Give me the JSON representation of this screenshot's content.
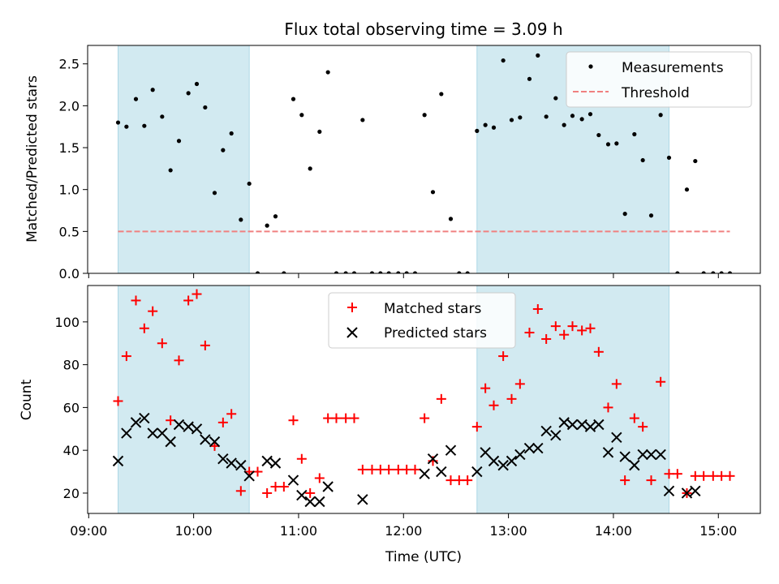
{
  "figure": {
    "title": "Flux total observing time = 3.09 h",
    "xlabel": "Time (UTC)",
    "x_ticks": [
      "09:00",
      "10:00",
      "11:00",
      "12:00",
      "13:00",
      "14:00",
      "15:00"
    ],
    "x_tick_hours": [
      9,
      10,
      11,
      12,
      13,
      14,
      15
    ],
    "xlim_hours": [
      8.99,
      15.4
    ],
    "shaded_spans_hours": [
      [
        9.28,
        10.53
      ],
      [
        12.7,
        14.53
      ]
    ],
    "shade_color": "#add8e6"
  },
  "chart_data": [
    {
      "type": "scatter",
      "ylabel": "Matched/Predicted stars",
      "ylim": [
        0,
        2.72
      ],
      "y_ticks": [
        0.0,
        0.5,
        1.0,
        1.5,
        2.0,
        2.5
      ],
      "y_tick_labels": [
        "0.0",
        "0.5",
        "1.0",
        "1.5",
        "2.0",
        "2.5"
      ],
      "legend_position": "upper-right",
      "series": [
        {
          "name": "Measurements",
          "kind": "points",
          "color": "#000000",
          "points": [
            [
              9.28,
              1.8
            ],
            [
              9.36,
              1.75
            ],
            [
              9.45,
              2.08
            ],
            [
              9.53,
              1.76
            ],
            [
              9.61,
              2.19
            ],
            [
              9.7,
              1.87
            ],
            [
              9.78,
              1.23
            ],
            [
              9.86,
              1.58
            ],
            [
              9.95,
              2.15
            ],
            [
              10.03,
              2.26
            ],
            [
              10.11,
              1.98
            ],
            [
              10.2,
              0.96
            ],
            [
              10.28,
              1.47
            ],
            [
              10.36,
              1.67
            ],
            [
              10.45,
              0.64
            ],
            [
              10.53,
              1.07
            ],
            [
              10.61,
              0.0
            ],
            [
              10.7,
              0.57
            ],
            [
              10.78,
              0.68
            ],
            [
              10.86,
              0.0
            ],
            [
              10.95,
              2.08
            ],
            [
              11.03,
              1.89
            ],
            [
              11.11,
              1.25
            ],
            [
              11.2,
              1.69
            ],
            [
              11.28,
              2.4
            ],
            [
              11.36,
              0.0
            ],
            [
              11.45,
              0.0
            ],
            [
              11.53,
              0.0
            ],
            [
              11.61,
              1.83
            ],
            [
              11.7,
              0.0
            ],
            [
              11.78,
              0.0
            ],
            [
              11.86,
              0.0
            ],
            [
              11.95,
              0.0
            ],
            [
              12.03,
              0.0
            ],
            [
              12.11,
              0.0
            ],
            [
              12.2,
              1.89
            ],
            [
              12.28,
              0.97
            ],
            [
              12.36,
              2.14
            ],
            [
              12.45,
              0.65
            ],
            [
              12.53,
              0.0
            ],
            [
              12.61,
              0.0
            ],
            [
              12.7,
              1.7
            ],
            [
              12.78,
              1.77
            ],
            [
              12.86,
              1.74
            ],
            [
              12.95,
              2.54
            ],
            [
              13.03,
              1.83
            ],
            [
              13.11,
              1.86
            ],
            [
              13.2,
              2.32
            ],
            [
              13.28,
              2.6
            ],
            [
              13.36,
              1.87
            ],
            [
              13.45,
              2.09
            ],
            [
              13.53,
              1.77
            ],
            [
              13.61,
              1.88
            ],
            [
              13.7,
              1.84
            ],
            [
              13.78,
              1.9
            ],
            [
              13.86,
              1.65
            ],
            [
              13.95,
              1.54
            ],
            [
              14.03,
              1.55
            ],
            [
              14.11,
              0.71
            ],
            [
              14.2,
              1.66
            ],
            [
              14.28,
              1.35
            ],
            [
              14.36,
              0.69
            ],
            [
              14.45,
              1.89
            ],
            [
              14.53,
              1.38
            ],
            [
              14.61,
              0.0
            ],
            [
              14.7,
              1.0
            ],
            [
              14.78,
              1.34
            ],
            [
              14.86,
              0.0
            ],
            [
              14.95,
              0.0
            ],
            [
              15.03,
              0.0
            ],
            [
              15.11,
              0.0
            ]
          ]
        },
        {
          "name": "Threshold",
          "kind": "dashed-line",
          "color": "#f08080",
          "x": [
            9.28,
            15.11
          ],
          "y": [
            0.5,
            0.5
          ]
        }
      ]
    },
    {
      "type": "scatter",
      "ylabel": "Count",
      "ylim": [
        10.5,
        117
      ],
      "y_ticks": [
        20,
        40,
        60,
        80,
        100
      ],
      "y_tick_labels": [
        "20",
        "40",
        "60",
        "80",
        "100"
      ],
      "legend_position": "upper-center",
      "series": [
        {
          "name": "Matched stars",
          "kind": "plus",
          "color": "#ff0000",
          "points": [
            [
              9.28,
              63
            ],
            [
              9.36,
              84
            ],
            [
              9.45,
              110
            ],
            [
              9.53,
              97
            ],
            [
              9.61,
              105
            ],
            [
              9.7,
              90
            ],
            [
              9.78,
              54
            ],
            [
              9.86,
              82
            ],
            [
              9.95,
              110
            ],
            [
              10.03,
              113
            ],
            [
              10.11,
              89
            ],
            [
              10.2,
              42
            ],
            [
              10.28,
              53
            ],
            [
              10.36,
              57
            ],
            [
              10.45,
              21
            ],
            [
              10.53,
              30
            ],
            [
              10.61,
              30
            ],
            [
              10.7,
              20
            ],
            [
              10.78,
              23
            ],
            [
              10.86,
              23
            ],
            [
              10.95,
              54
            ],
            [
              11.03,
              36
            ],
            [
              11.11,
              20
            ],
            [
              11.2,
              27
            ],
            [
              11.28,
              55
            ],
            [
              11.36,
              55
            ],
            [
              11.45,
              55
            ],
            [
              11.53,
              55
            ],
            [
              11.61,
              31
            ],
            [
              11.7,
              31
            ],
            [
              11.78,
              31
            ],
            [
              11.86,
              31
            ],
            [
              11.95,
              31
            ],
            [
              12.03,
              31
            ],
            [
              12.11,
              31
            ],
            [
              12.2,
              55
            ],
            [
              12.28,
              35
            ],
            [
              12.36,
              64
            ],
            [
              12.45,
              26
            ],
            [
              12.53,
              26
            ],
            [
              12.61,
              26
            ],
            [
              12.7,
              51
            ],
            [
              12.78,
              69
            ],
            [
              12.86,
              61
            ],
            [
              12.95,
              84
            ],
            [
              13.03,
              64
            ],
            [
              13.11,
              71
            ],
            [
              13.2,
              95
            ],
            [
              13.28,
              106
            ],
            [
              13.36,
              92
            ],
            [
              13.45,
              98
            ],
            [
              13.53,
              94
            ],
            [
              13.61,
              98
            ],
            [
              13.7,
              96
            ],
            [
              13.78,
              97
            ],
            [
              13.86,
              86
            ],
            [
              13.95,
              60
            ],
            [
              14.03,
              71
            ],
            [
              14.11,
              26
            ],
            [
              14.2,
              55
            ],
            [
              14.28,
              51
            ],
            [
              14.36,
              26
            ],
            [
              14.45,
              72
            ],
            [
              14.53,
              29
            ],
            [
              14.61,
              29
            ],
            [
              14.7,
              20
            ],
            [
              14.78,
              28
            ],
            [
              14.86,
              28
            ],
            [
              14.95,
              28
            ],
            [
              15.03,
              28
            ],
            [
              15.11,
              28
            ]
          ]
        },
        {
          "name": "Predicted stars",
          "kind": "x",
          "color": "#000000",
          "points": [
            [
              9.28,
              35
            ],
            [
              9.36,
              48
            ],
            [
              9.45,
              53
            ],
            [
              9.53,
              55
            ],
            [
              9.61,
              48
            ],
            [
              9.7,
              48
            ],
            [
              9.78,
              44
            ],
            [
              9.86,
              52
            ],
            [
              9.95,
              51
            ],
            [
              10.03,
              50
            ],
            [
              10.11,
              45
            ],
            [
              10.2,
              44
            ],
            [
              10.28,
              36
            ],
            [
              10.36,
              34
            ],
            [
              10.45,
              33
            ],
            [
              10.53,
              28
            ],
            [
              10.7,
              35
            ],
            [
              10.78,
              34
            ],
            [
              10.95,
              26
            ],
            [
              11.03,
              19
            ],
            [
              11.11,
              16
            ],
            [
              11.2,
              16
            ],
            [
              11.28,
              23
            ],
            [
              11.61,
              17
            ],
            [
              12.2,
              29
            ],
            [
              12.28,
              36
            ],
            [
              12.36,
              30
            ],
            [
              12.45,
              40
            ],
            [
              12.7,
              30
            ],
            [
              12.78,
              39
            ],
            [
              12.86,
              35
            ],
            [
              12.95,
              33
            ],
            [
              13.03,
              35
            ],
            [
              13.11,
              38
            ],
            [
              13.2,
              41
            ],
            [
              13.28,
              41
            ],
            [
              13.36,
              49
            ],
            [
              13.45,
              47
            ],
            [
              13.53,
              53
            ],
            [
              13.61,
              52
            ],
            [
              13.7,
              52
            ],
            [
              13.78,
              51
            ],
            [
              13.86,
              52
            ],
            [
              13.95,
              39
            ],
            [
              14.03,
              46
            ],
            [
              14.11,
              37
            ],
            [
              14.2,
              33
            ],
            [
              14.28,
              38
            ],
            [
              14.36,
              38
            ],
            [
              14.45,
              38
            ],
            [
              14.53,
              21
            ],
            [
              14.7,
              20
            ],
            [
              14.78,
              21
            ]
          ]
        }
      ]
    }
  ]
}
